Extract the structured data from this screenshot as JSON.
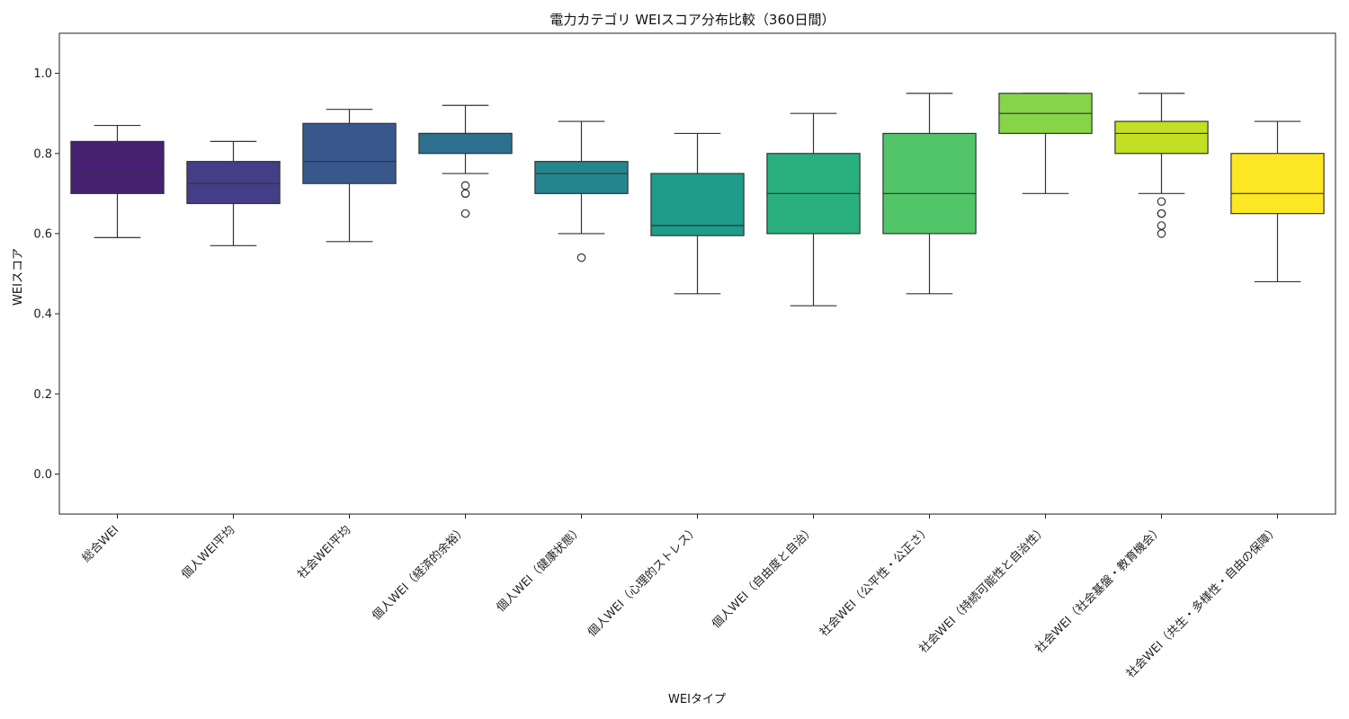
{
  "chart_data": {
    "type": "box",
    "title": "電力カテゴリ WEIスコア分布比較（360日間）",
    "xlabel": "WEIタイプ",
    "ylabel": "WEIスコア",
    "ylim": [
      -0.1,
      1.1
    ],
    "yticks": [
      0.0,
      0.2,
      0.4,
      0.6,
      0.8,
      1.0
    ],
    "ytick_labels": [
      "0.0",
      "0.2",
      "0.4",
      "0.6",
      "0.8",
      "1.0"
    ],
    "grid": false,
    "categories": [
      "総合WEI",
      "個人WEI平均",
      "社会WEI平均",
      "個人WEI（経済的余裕）",
      "個人WEI（健康状態）",
      "個人WEI（心理的ストレス）",
      "個人WEI（自由度と自治）",
      "社会WEI（公平性・公正さ）",
      "社会WEI（持続可能性と自治性）",
      "社会WEI（社会基盤・教育機会）",
      "社会WEI（共生・多様性・自由の保障）"
    ],
    "boxes": [
      {
        "whisker_low": 0.59,
        "q1": 0.7,
        "median": 0.75,
        "q3": 0.83,
        "whisker_high": 0.87,
        "outliers": [],
        "color": "#482173"
      },
      {
        "whisker_low": 0.57,
        "q1": 0.675,
        "median": 0.725,
        "q3": 0.78,
        "whisker_high": 0.83,
        "outliers": [],
        "color": "#433e85"
      },
      {
        "whisker_low": 0.58,
        "q1": 0.725,
        "median": 0.78,
        "q3": 0.875,
        "whisker_high": 0.91,
        "outliers": [],
        "color": "#38588c"
      },
      {
        "whisker_low": 0.75,
        "q1": 0.8,
        "median": 0.85,
        "q3": 0.85,
        "whisker_high": 0.92,
        "outliers": [
          0.72,
          0.7,
          0.7,
          0.65
        ],
        "color": "#2d708e"
      },
      {
        "whisker_low": 0.6,
        "q1": 0.7,
        "median": 0.75,
        "q3": 0.78,
        "whisker_high": 0.88,
        "outliers": [
          0.54
        ],
        "color": "#25858e"
      },
      {
        "whisker_low": 0.45,
        "q1": 0.595,
        "median": 0.62,
        "q3": 0.75,
        "whisker_high": 0.85,
        "outliers": [],
        "color": "#1e9b8a"
      },
      {
        "whisker_low": 0.42,
        "q1": 0.6,
        "median": 0.7,
        "q3": 0.8,
        "whisker_high": 0.9,
        "outliers": [],
        "color": "#2ab07f"
      },
      {
        "whisker_low": 0.45,
        "q1": 0.6,
        "median": 0.7,
        "q3": 0.85,
        "whisker_high": 0.95,
        "outliers": [],
        "color": "#52c569"
      },
      {
        "whisker_low": 0.7,
        "q1": 0.85,
        "median": 0.9,
        "q3": 0.95,
        "whisker_high": 0.95,
        "outliers": [],
        "color": "#86d549"
      },
      {
        "whisker_low": 0.7,
        "q1": 0.8,
        "median": 0.85,
        "q3": 0.88,
        "whisker_high": 0.95,
        "outliers": [
          0.68,
          0.65,
          0.65,
          0.62,
          0.6
        ],
        "color": "#c2df23"
      },
      {
        "whisker_low": 0.48,
        "q1": 0.65,
        "median": 0.7,
        "q3": 0.8,
        "whisker_high": 0.88,
        "outliers": [],
        "color": "#fde725"
      }
    ]
  }
}
